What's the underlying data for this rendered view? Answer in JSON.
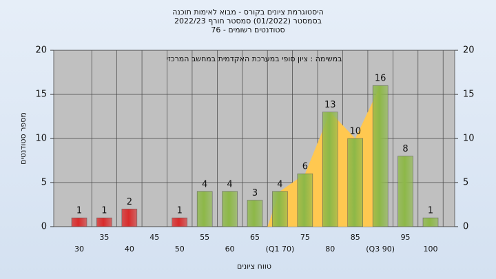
{
  "chart_data": {
    "type": "bar",
    "title": [
      "היסטוגרמת ציונים בקורס - מבוא לאימות תוכנה",
      "בסמסטר  (01/2022)  סמסטר חורף  2022/23",
      "סטודנטים רשומים - 76"
    ],
    "annotation": "במשימה : ציון סופי במערכת האקדמית במחשב המרכזי",
    "x_label": "טווח ציונים",
    "y_label": "מספר סטודנטים",
    "categories": [
      "30",
      "35",
      "40",
      "45",
      "50",
      "55",
      "60",
      "65",
      "(Q1 70)",
      "75",
      "80",
      "85",
      "(Q3 90)",
      "95",
      "100"
    ],
    "values": [
      1,
      1,
      2,
      0,
      1,
      4,
      4,
      3,
      4,
      6,
      13,
      10,
      16,
      8,
      1
    ],
    "colors": [
      "#d92b2b",
      "#d92b2b",
      "#d92b2b",
      "#d92b2b",
      "#d92b2b",
      "#8db848",
      "#8db848",
      "#8db848",
      "#8db848",
      "#8db848",
      "#8db848",
      "#8db848",
      "#8db848",
      "#8db848",
      "#8db848"
    ],
    "iqr_color": "#ffc850",
    "ylim": [
      0,
      20
    ],
    "yticks": [
      0,
      5,
      10,
      15,
      20
    ],
    "y2lim": [
      0,
      20
    ],
    "y2ticks": [
      0,
      5,
      10,
      15,
      20
    ],
    "grid": true
  }
}
